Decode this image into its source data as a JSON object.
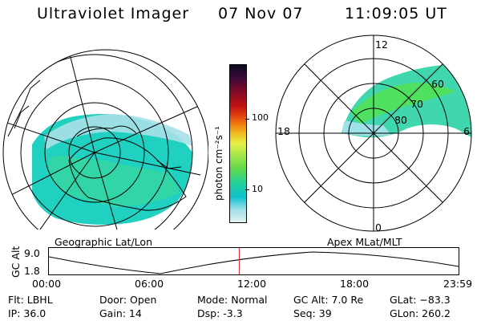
{
  "header": {
    "instrument": "Ultraviolet Imager",
    "date": "07 Nov 07",
    "time": "11:09:05 UT"
  },
  "colorbar": {
    "label": "photon cm⁻²s⁻¹",
    "ticks": [
      "100",
      "10"
    ],
    "scale": "log",
    "colors": [
      "#0b0b20",
      "#3a0a3a",
      "#7a0a2a",
      "#c01010",
      "#e04010",
      "#f08010",
      "#f0c020",
      "#e6f04a",
      "#a8e84a",
      "#60d84a",
      "#20d0a0",
      "#10c0d0",
      "#a0e0e8",
      "#dff0f0"
    ]
  },
  "maps": {
    "geographic_label": "Geographic Lat/Lon",
    "apex_label": "Apex MLat/MLT",
    "apex_lat_labels": [
      "60",
      "70",
      "80"
    ],
    "apex_mlt_labels": [
      "12",
      "18",
      "6",
      "0"
    ]
  },
  "altitude_plot": {
    "axis_label": "GC Alt",
    "y_ticks": [
      "9.0",
      "1.8"
    ],
    "x_ticks": [
      "00:00",
      "06:00",
      "12:00",
      "18:00",
      "23:59"
    ],
    "current_time_hours": 11.15,
    "marker_color": "#e02020"
  },
  "info": {
    "filter": "Flt: LBHL",
    "ip": "IP: 36.0",
    "door": "Door: Open",
    "gain": "Gain: 14",
    "mode": "Mode: Normal",
    "dsp": "Dsp:    -3.3",
    "gc_alt": "GC Alt: 7.0 Re",
    "seq": "Seq: 39",
    "glat": "GLat: −83.3",
    "glon": "GLon: 260.2"
  }
}
